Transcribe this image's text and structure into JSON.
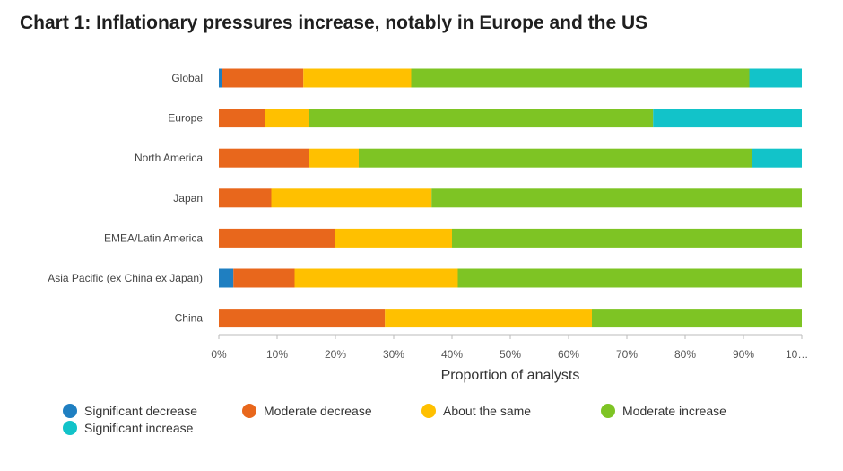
{
  "title": "Chart 1: Inflationary pressures increase, notably in Europe and the US",
  "chart_data": {
    "type": "bar",
    "orientation": "horizontal",
    "stacked": true,
    "categories": [
      "Global",
      "Europe",
      "North America",
      "Japan",
      "EMEA/Latin America",
      "Asia Pacific (ex China ex Japan)",
      "China"
    ],
    "series": [
      {
        "name": "Significant decrease",
        "color": "#1f7fc1",
        "values": [
          0.5,
          0,
          0,
          0,
          0,
          2.5,
          0
        ]
      },
      {
        "name": "Moderate decrease",
        "color": "#e8671c",
        "values": [
          14,
          8,
          15.5,
          9,
          20,
          10.5,
          28.5
        ]
      },
      {
        "name": "About the same",
        "color": "#ffc000",
        "values": [
          18.5,
          7.5,
          8.5,
          27.5,
          20,
          28,
          35.5
        ]
      },
      {
        "name": "Moderate increase",
        "color": "#7ec424",
        "values": [
          58,
          59,
          67.5,
          63.5,
          60,
          59,
          36
        ]
      },
      {
        "name": "Significant increase",
        "color": "#12c3c9",
        "values": [
          9,
          25.5,
          8.5,
          0,
          0,
          0,
          0
        ]
      }
    ],
    "xlim": [
      0,
      100
    ],
    "x_ticks": [
      "0%",
      "10%",
      "20%",
      "30%",
      "40%",
      "50%",
      "60%",
      "70%",
      "80%",
      "90%",
      "10…"
    ],
    "xlabel": "Proportion of analysts",
    "ylabel": "",
    "grid": false,
    "legend_position": "bottom"
  }
}
